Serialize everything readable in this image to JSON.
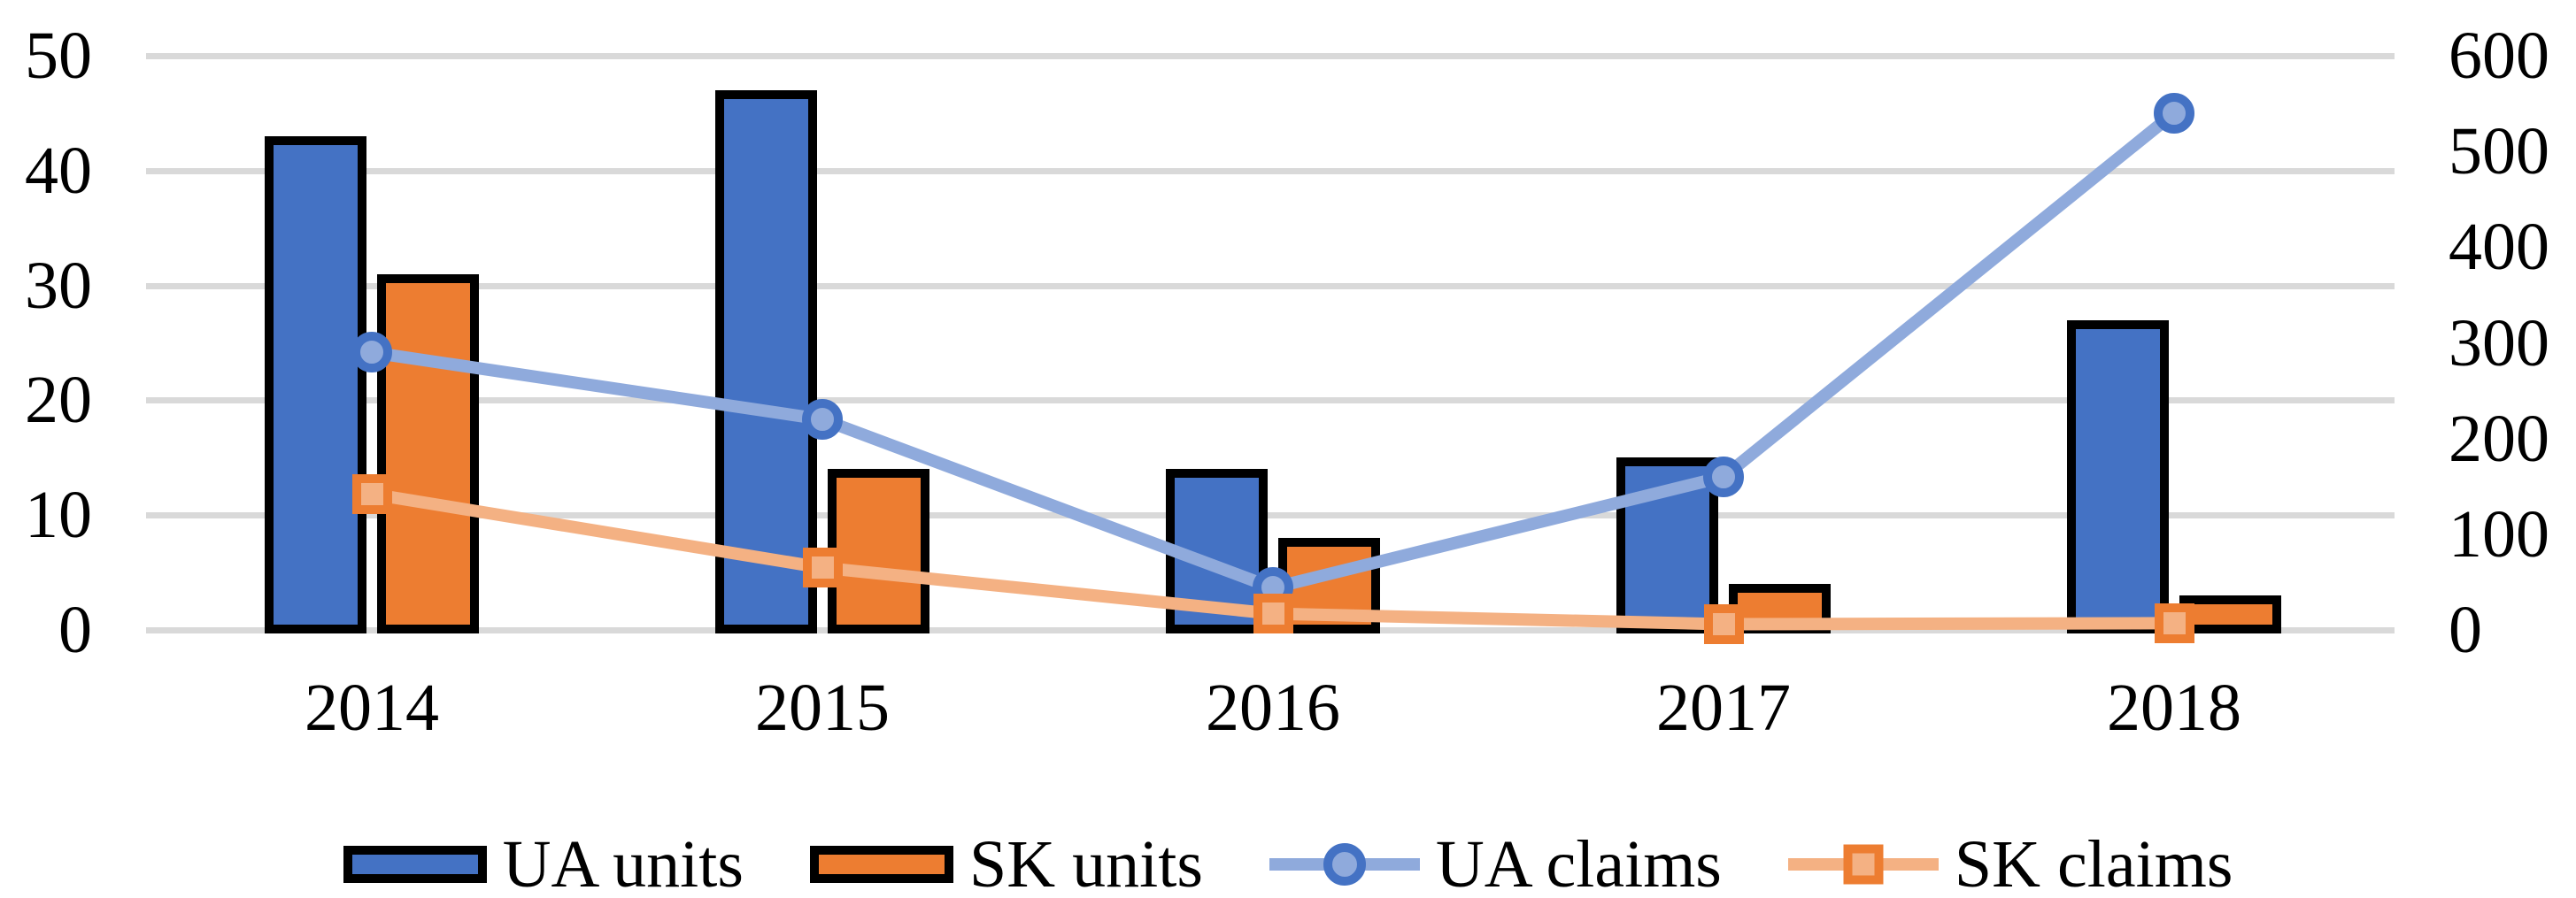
{
  "chart_data": {
    "type": "combo-bar-line",
    "title": "",
    "categories": [
      "2014",
      "2015",
      "2016",
      "2017",
      "2018"
    ],
    "series": [
      {
        "name": "UA units",
        "type": "bar",
        "axis": "left",
        "values": [
          43,
          47,
          14,
          15,
          27
        ],
        "fill": "#4472C4",
        "border": "#000000"
      },
      {
        "name": "SK units",
        "type": "bar",
        "axis": "left",
        "values": [
          31,
          14,
          8,
          4,
          3
        ],
        "fill": "#ED7D31",
        "border": "#000000"
      },
      {
        "name": "UA claims",
        "type": "line",
        "axis": "right",
        "values": [
          290,
          220,
          44,
          160,
          540
        ],
        "color": "#8FAADC",
        "marker": "circle",
        "marker_fill": "#8FAADC",
        "marker_stroke": "#4472C4"
      },
      {
        "name": "SK claims",
        "type": "line",
        "axis": "right",
        "values": [
          142,
          65,
          17,
          6,
          7
        ],
        "color": "#F4B183",
        "marker": "square",
        "marker_fill": "#F4B183",
        "marker_stroke": "#ED7D31"
      }
    ],
    "left_axis": {
      "min": 0,
      "max": 50,
      "ticks": [
        50,
        40,
        30,
        20,
        10,
        0
      ]
    },
    "right_axis": {
      "min": 0,
      "max": 600,
      "ticks": [
        600,
        500,
        400,
        300,
        200,
        100,
        0
      ]
    },
    "grid": true,
    "gridline_color": "#D9D9D9",
    "background": "#FFFFFF",
    "legend_position": "bottom"
  }
}
